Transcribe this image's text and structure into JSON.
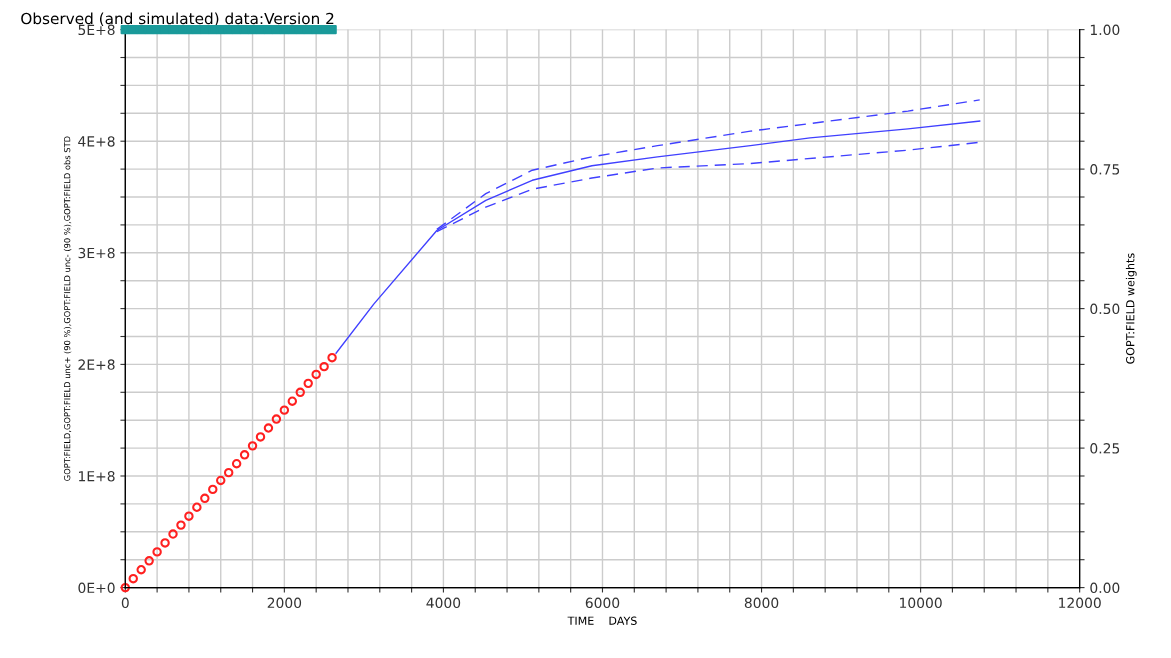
{
  "chart_data": {
    "type": "line",
    "title": "Observed (and simulated) data:Version 2",
    "xlabel": "TIME    DAYS",
    "ylabel": "GOPT:FIELD,GOPT:FIELD unc+ (90 %),GOPT:FIELD unc- (90 %),GOPT:FIELD obs STD",
    "y2label": "GOPT:FIELD weights",
    "xlim": [
      0,
      12000
    ],
    "ylim": [
      0,
      500000000
    ],
    "y2lim": [
      0,
      1
    ],
    "xticks": [
      {
        "value": 0,
        "label": "0"
      },
      {
        "value": 400,
        "label": null
      },
      {
        "value": 800,
        "label": null
      },
      {
        "value": 1200,
        "label": null
      },
      {
        "value": 1600,
        "label": null
      },
      {
        "value": 2000,
        "label": "2000"
      },
      {
        "value": 2400,
        "label": null
      },
      {
        "value": 2800,
        "label": null
      },
      {
        "value": 3200,
        "label": null
      },
      {
        "value": 3600,
        "label": null
      },
      {
        "value": 4000,
        "label": "4000"
      },
      {
        "value": 4400,
        "label": null
      },
      {
        "value": 4800,
        "label": null
      },
      {
        "value": 5200,
        "label": null
      },
      {
        "value": 5600,
        "label": null
      },
      {
        "value": 6000,
        "label": "6000"
      },
      {
        "value": 6400,
        "label": null
      },
      {
        "value": 6800,
        "label": null
      },
      {
        "value": 7200,
        "label": null
      },
      {
        "value": 7600,
        "label": null
      },
      {
        "value": 8000,
        "label": "8000"
      },
      {
        "value": 8400,
        "label": null
      },
      {
        "value": 8800,
        "label": null
      },
      {
        "value": 9200,
        "label": null
      },
      {
        "value": 9600,
        "label": null
      },
      {
        "value": 10000,
        "label": "10000"
      },
      {
        "value": 10400,
        "label": null
      },
      {
        "value": 10800,
        "label": null
      },
      {
        "value": 11200,
        "label": null
      },
      {
        "value": 11600,
        "label": null
      },
      {
        "value": 12000,
        "label": "12000"
      }
    ],
    "yticks": [
      {
        "value": 0,
        "label": "0E+0"
      },
      {
        "value": 25000000,
        "label": null
      },
      {
        "value": 50000000,
        "label": null
      },
      {
        "value": 75000000,
        "label": null
      },
      {
        "value": 100000000,
        "label": "1E+8"
      },
      {
        "value": 125000000,
        "label": null
      },
      {
        "value": 150000000,
        "label": null
      },
      {
        "value": 175000000,
        "label": null
      },
      {
        "value": 200000000,
        "label": "2E+8"
      },
      {
        "value": 225000000,
        "label": null
      },
      {
        "value": 250000000,
        "label": null
      },
      {
        "value": 275000000,
        "label": null
      },
      {
        "value": 300000000,
        "label": "3E+8"
      },
      {
        "value": 325000000,
        "label": null
      },
      {
        "value": 350000000,
        "label": null
      },
      {
        "value": 375000000,
        "label": null
      },
      {
        "value": 400000000,
        "label": "4E+8"
      },
      {
        "value": 425000000,
        "label": null
      },
      {
        "value": 450000000,
        "label": null
      },
      {
        "value": 475000000,
        "label": null
      },
      {
        "value": 500000000,
        "label": "5E+8"
      }
    ],
    "y2ticks": [
      {
        "value": 0,
        "label": "0.00"
      },
      {
        "value": 0.05,
        "label": null
      },
      {
        "value": 0.1,
        "label": null
      },
      {
        "value": 0.15,
        "label": null
      },
      {
        "value": 0.2,
        "label": null
      },
      {
        "value": 0.25,
        "label": "0.25"
      },
      {
        "value": 0.3,
        "label": null
      },
      {
        "value": 0.35,
        "label": null
      },
      {
        "value": 0.4,
        "label": null
      },
      {
        "value": 0.45,
        "label": null
      },
      {
        "value": 0.5,
        "label": "0.50"
      },
      {
        "value": 0.55,
        "label": null
      },
      {
        "value": 0.6,
        "label": null
      },
      {
        "value": 0.65,
        "label": null
      },
      {
        "value": 0.7,
        "label": null
      },
      {
        "value": 0.75,
        "label": "0.75"
      },
      {
        "value": 0.8,
        "label": null
      },
      {
        "value": 0.85,
        "label": null
      },
      {
        "value": 0.9,
        "label": null
      },
      {
        "value": 0.95,
        "label": null
      },
      {
        "value": 1,
        "label": "1.00"
      }
    ],
    "grid": true,
    "series": [
      {
        "color": "#4040ff",
        "line_style": "solid",
        "marker": "none",
        "x": [
          2650,
          3124,
          3917,
          4533,
          5117,
          5867,
          6692,
          7860,
          8610,
          9841,
          10743
        ],
        "values": [
          210000000,
          254000000,
          320000000,
          347000000,
          365000000,
          378000000,
          386000000,
          396000000,
          403000000,
          411000000,
          418000000
        ]
      },
      {
        "color": "#4040ff",
        "line_style": "dashed",
        "marker": "none",
        "x": [
          3917,
          4533,
          5117,
          5867,
          6692,
          7860,
          9841,
          10743
        ],
        "values": [
          321000000,
          353000000,
          374000000,
          386000000,
          396000000,
          409000000,
          427000000,
          437000000
        ]
      },
      {
        "color": "#4040ff",
        "line_style": "dashed",
        "marker": "none",
        "x": [
          3917,
          4533,
          5117,
          5867,
          6692,
          7860,
          9841,
          10743
        ],
        "values": [
          319000000,
          341000000,
          357000000,
          367000000,
          376000000,
          380000000,
          392000000,
          399000000
        ]
      },
      {
        "type": "scatter",
        "color": "#ff2020",
        "marker": "circle",
        "x": [
          0,
          100,
          200,
          300,
          400,
          500,
          600,
          700,
          800,
          900,
          1000,
          1100,
          1200,
          1300,
          1400,
          1500,
          1600,
          1700,
          1800,
          1900,
          2000,
          2100,
          2200,
          2300,
          2400,
          2500,
          2600
        ],
        "values": [
          0,
          8000000,
          16000000,
          24000000,
          32000000,
          40000000,
          48000000,
          56000000,
          64000000,
          72000000,
          80000000,
          88000000,
          96000000,
          103000000,
          111000000,
          119000000,
          127000000,
          135000000,
          143000000,
          151000000,
          159000000,
          167000000,
          175000000,
          183000000,
          191000000,
          198000000,
          206000000
        ]
      },
      {
        "type": "scatter",
        "axis": "y2",
        "color": "#1a9a9a",
        "marker": "square",
        "x": [
          0,
          100,
          200,
          300,
          400,
          500,
          600,
          700,
          800,
          900,
          1000,
          1100,
          1200,
          1300,
          1400,
          1500,
          1600,
          1700,
          1800,
          1900,
          2000,
          2100,
          2200,
          2300,
          2400,
          2500,
          2600
        ],
        "values": [
          1,
          1,
          1,
          1,
          1,
          1,
          1,
          1,
          1,
          1,
          1,
          1,
          1,
          1,
          1,
          1,
          1,
          1,
          1,
          1,
          1,
          1,
          1,
          1,
          1,
          1,
          1
        ]
      }
    ]
  }
}
